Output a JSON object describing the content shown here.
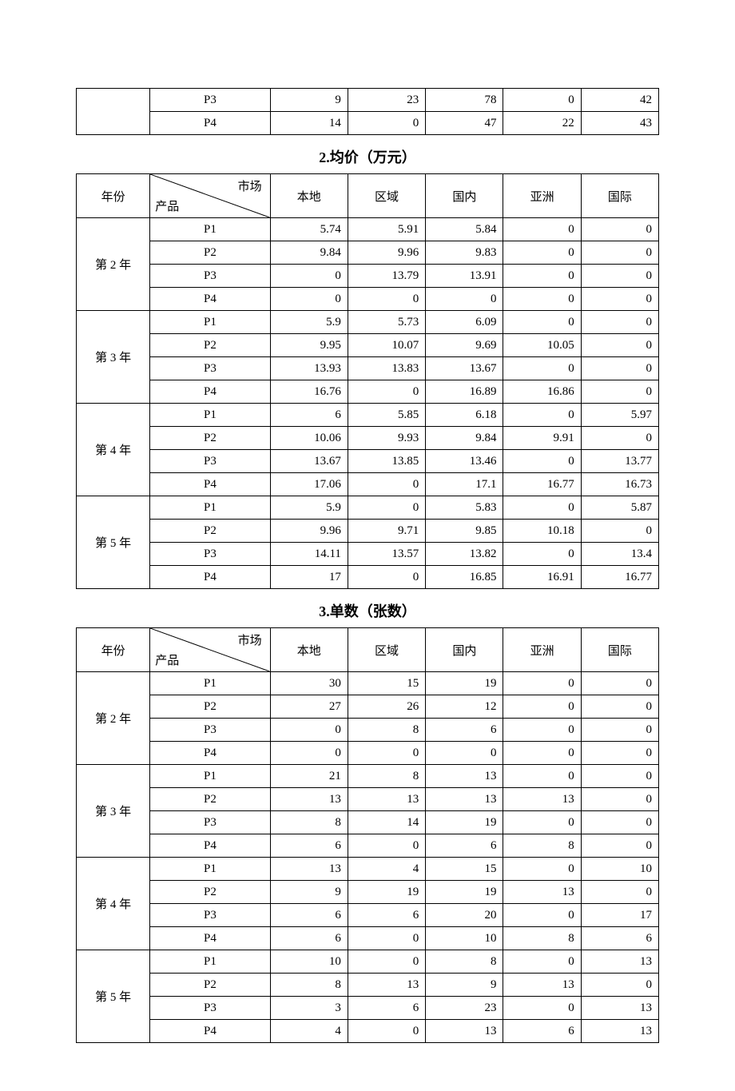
{
  "topFragment": {
    "rows": [
      {
        "product": "P3",
        "values": [
          "9",
          "23",
          "78",
          "0",
          "42"
        ]
      },
      {
        "product": "P4",
        "values": [
          "14",
          "0",
          "47",
          "22",
          "43"
        ]
      }
    ]
  },
  "section2": {
    "title": "2.均价（万元）",
    "header": {
      "year": "年份",
      "diagTop": "市场",
      "diagBottom": "产品",
      "cols": [
        "本地",
        "区域",
        "国内",
        "亚洲",
        "国际"
      ]
    },
    "groups": [
      {
        "year": "第 2 年",
        "rows": [
          {
            "product": "P1",
            "values": [
              "5.74",
              "5.91",
              "5.84",
              "0",
              "0"
            ]
          },
          {
            "product": "P2",
            "values": [
              "9.84",
              "9.96",
              "9.83",
              "0",
              "0"
            ]
          },
          {
            "product": "P3",
            "values": [
              "0",
              "13.79",
              "13.91",
              "0",
              "0"
            ]
          },
          {
            "product": "P4",
            "values": [
              "0",
              "0",
              "0",
              "0",
              "0"
            ]
          }
        ]
      },
      {
        "year": "第 3 年",
        "rows": [
          {
            "product": "P1",
            "values": [
              "5.9",
              "5.73",
              "6.09",
              "0",
              "0"
            ]
          },
          {
            "product": "P2",
            "values": [
              "9.95",
              "10.07",
              "9.69",
              "10.05",
              "0"
            ]
          },
          {
            "product": "P3",
            "values": [
              "13.93",
              "13.83",
              "13.67",
              "0",
              "0"
            ]
          },
          {
            "product": "P4",
            "values": [
              "16.76",
              "0",
              "16.89",
              "16.86",
              "0"
            ]
          }
        ]
      },
      {
        "year": "第 4 年",
        "rows": [
          {
            "product": "P1",
            "values": [
              "6",
              "5.85",
              "6.18",
              "0",
              "5.97"
            ]
          },
          {
            "product": "P2",
            "values": [
              "10.06",
              "9.93",
              "9.84",
              "9.91",
              "0"
            ]
          },
          {
            "product": "P3",
            "values": [
              "13.67",
              "13.85",
              "13.46",
              "0",
              "13.77"
            ]
          },
          {
            "product": "P4",
            "values": [
              "17.06",
              "0",
              "17.1",
              "16.77",
              "16.73"
            ]
          }
        ]
      },
      {
        "year": "第 5 年",
        "rows": [
          {
            "product": "P1",
            "values": [
              "5.9",
              "0",
              "5.83",
              "0",
              "5.87"
            ]
          },
          {
            "product": "P2",
            "values": [
              "9.96",
              "9.71",
              "9.85",
              "10.18",
              "0"
            ]
          },
          {
            "product": "P3",
            "values": [
              "14.11",
              "13.57",
              "13.82",
              "0",
              "13.4"
            ]
          },
          {
            "product": "P4",
            "values": [
              "17",
              "0",
              "16.85",
              "16.91",
              "16.77"
            ]
          }
        ]
      }
    ]
  },
  "section3": {
    "title": "3.单数（张数）",
    "header": {
      "year": "年份",
      "diagTop": "市场",
      "diagBottom": "产品",
      "cols": [
        "本地",
        "区域",
        "国内",
        "亚洲",
        "国际"
      ]
    },
    "groups": [
      {
        "year": "第 2 年",
        "rows": [
          {
            "product": "P1",
            "values": [
              "30",
              "15",
              "19",
              "0",
              "0"
            ]
          },
          {
            "product": "P2",
            "values": [
              "27",
              "26",
              "12",
              "0",
              "0"
            ]
          },
          {
            "product": "P3",
            "values": [
              "0",
              "8",
              "6",
              "0",
              "0"
            ]
          },
          {
            "product": "P4",
            "values": [
              "0",
              "0",
              "0",
              "0",
              "0"
            ]
          }
        ]
      },
      {
        "year": "第 3 年",
        "rows": [
          {
            "product": "P1",
            "values": [
              "21",
              "8",
              "13",
              "0",
              "0"
            ]
          },
          {
            "product": "P2",
            "values": [
              "13",
              "13",
              "13",
              "13",
              "0"
            ]
          },
          {
            "product": "P3",
            "values": [
              "8",
              "14",
              "19",
              "0",
              "0"
            ]
          },
          {
            "product": "P4",
            "values": [
              "6",
              "0",
              "6",
              "8",
              "0"
            ]
          }
        ]
      },
      {
        "year": "第 4 年",
        "rows": [
          {
            "product": "P1",
            "values": [
              "13",
              "4",
              "15",
              "0",
              "10"
            ]
          },
          {
            "product": "P2",
            "values": [
              "9",
              "19",
              "19",
              "13",
              "0"
            ]
          },
          {
            "product": "P3",
            "values": [
              "6",
              "6",
              "20",
              "0",
              "17"
            ]
          },
          {
            "product": "P4",
            "values": [
              "6",
              "0",
              "10",
              "8",
              "6"
            ]
          }
        ]
      },
      {
        "year": "第 5 年",
        "rows": [
          {
            "product": "P1",
            "values": [
              "10",
              "0",
              "8",
              "0",
              "13"
            ]
          },
          {
            "product": "P2",
            "values": [
              "8",
              "13",
              "9",
              "13",
              "0"
            ]
          },
          {
            "product": "P3",
            "values": [
              "3",
              "6",
              "23",
              "0",
              "13"
            ]
          },
          {
            "product": "P4",
            "values": [
              "4",
              "0",
              "13",
              "6",
              "13"
            ]
          }
        ]
      }
    ]
  },
  "colWidths": {
    "year": 92,
    "product": 150,
    "data": 97
  }
}
